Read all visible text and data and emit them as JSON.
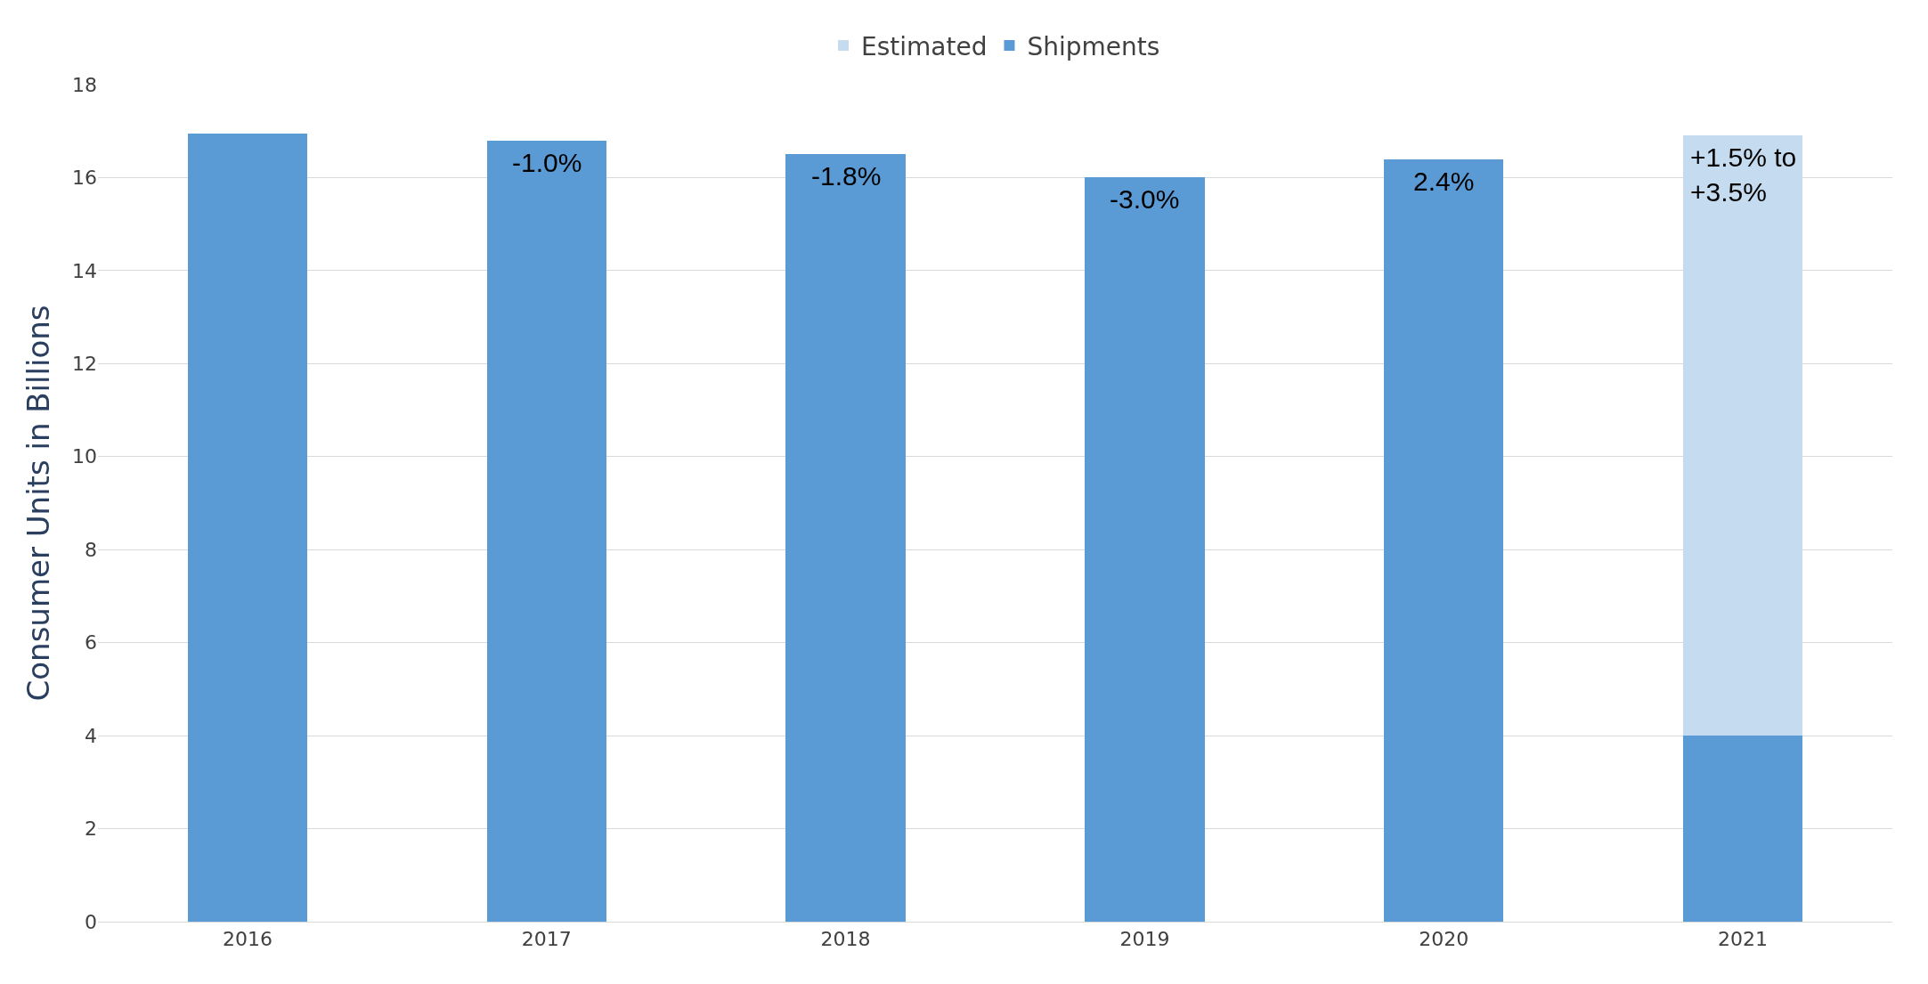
{
  "chart_data": {
    "type": "bar",
    "ylabel": "Consumer Units in Billions",
    "categories": [
      "2016",
      "2017",
      "2018",
      "2019",
      "2020",
      "2021"
    ],
    "series": [
      {
        "name": "Shipments",
        "color": "#5b9bd5",
        "values": [
          16.95,
          16.8,
          16.5,
          16.0,
          16.4,
          4.0
        ]
      },
      {
        "name": "Estimated",
        "color": "#c5dcf0",
        "values": [
          null,
          null,
          null,
          null,
          null,
          12.9
        ]
      }
    ],
    "stacked": true,
    "ylim": [
      0,
      18
    ],
    "yticks": [
      0,
      2,
      4,
      6,
      8,
      10,
      12,
      14,
      16,
      18
    ],
    "grid": "y",
    "legend": "top",
    "annotations": [
      {
        "text": "-1.0%",
        "x": "2017",
        "y": 16.8
      },
      {
        "text": "-1.8%",
        "x": "2018",
        "y": 16.5
      },
      {
        "text": "-3.0%",
        "x": "2019",
        "y": 16.0
      },
      {
        "text": "2.4%",
        "x": "2020",
        "y": 16.4
      },
      {
        "text": "+1.5% to\n+3.5%",
        "x": "2021",
        "y": 16.9
      }
    ]
  }
}
